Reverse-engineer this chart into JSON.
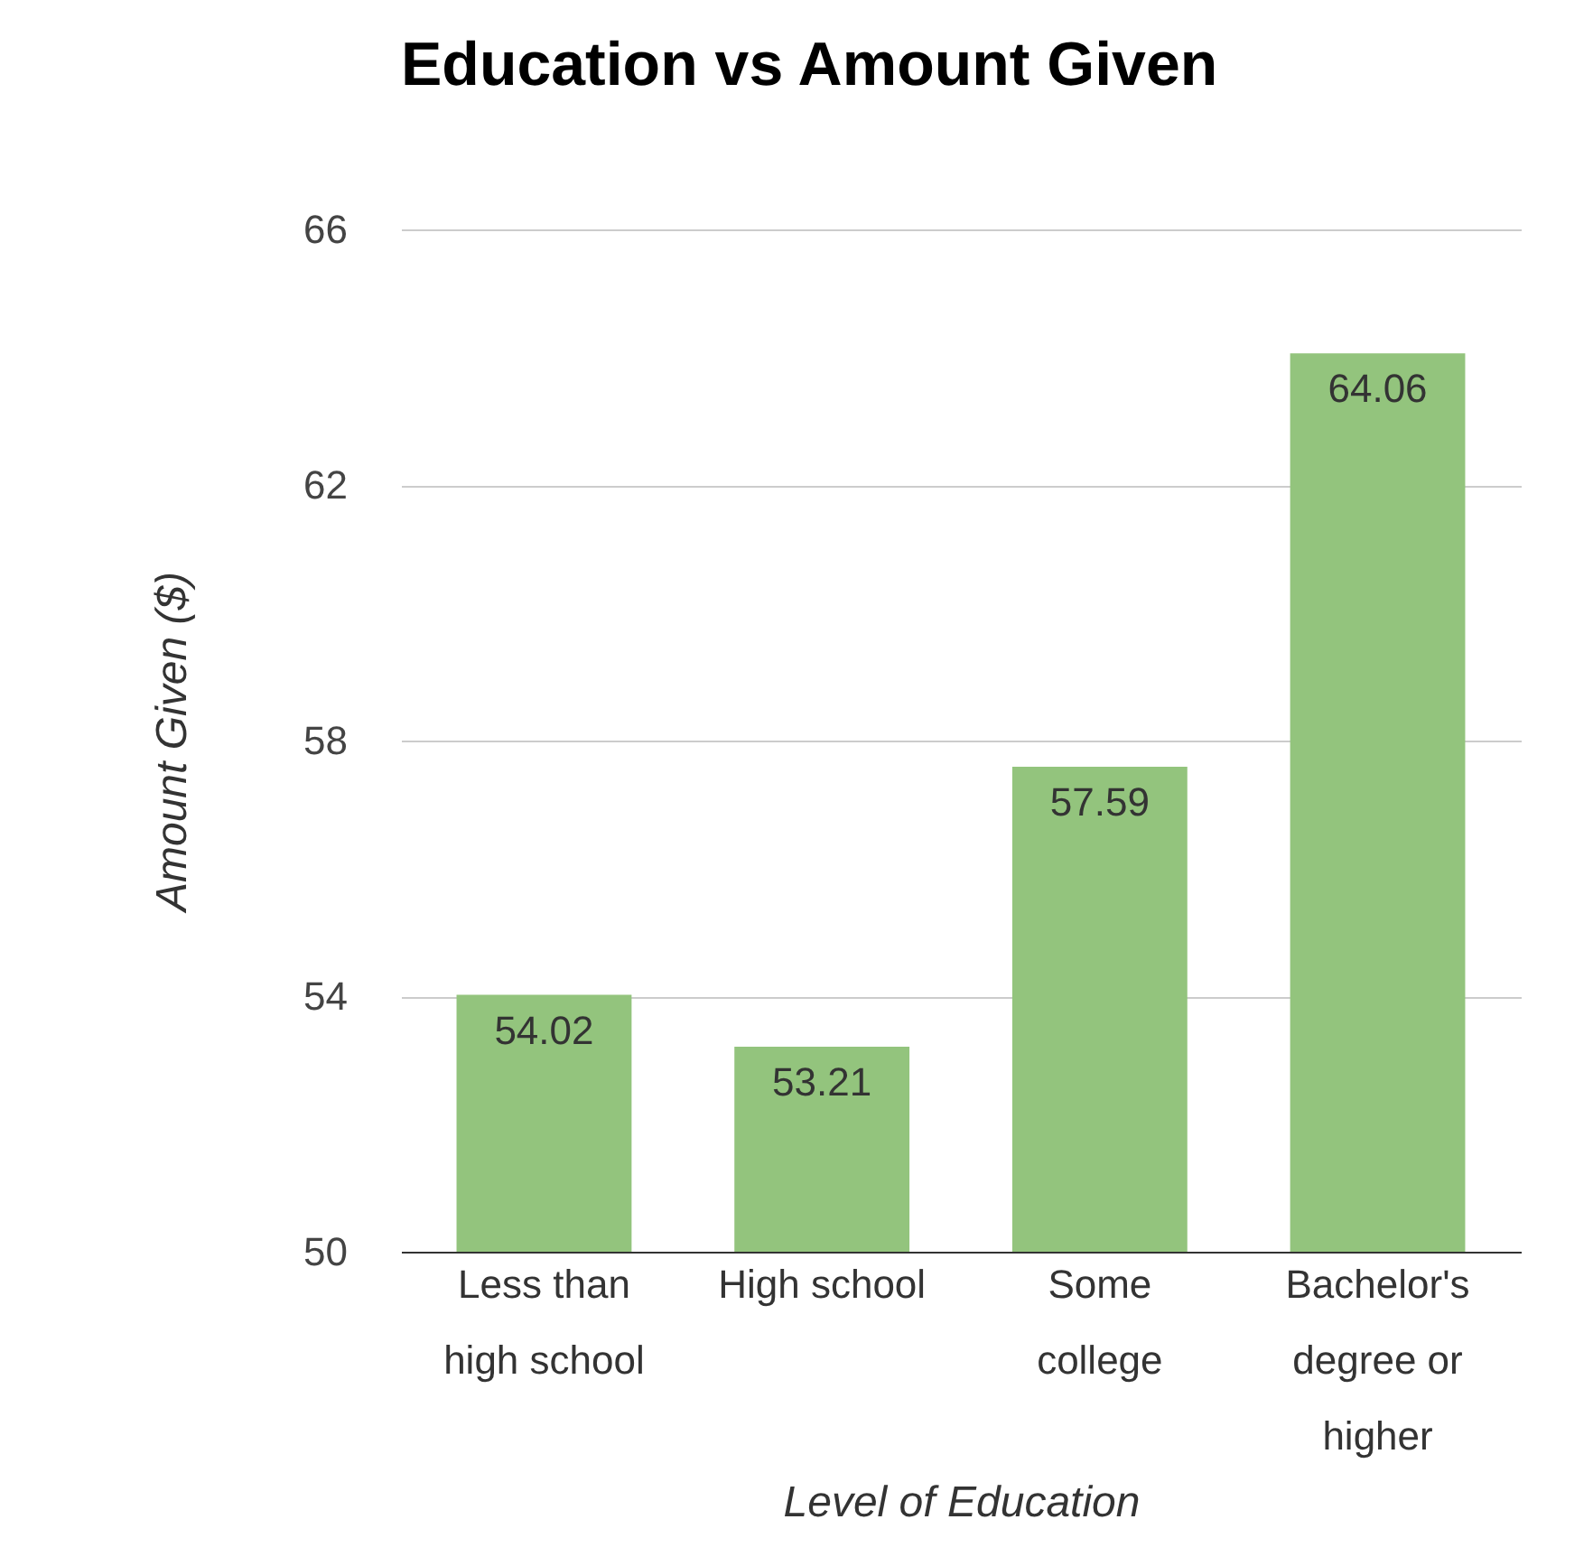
{
  "chart_data": {
    "type": "bar",
    "title": "Education vs Amount Given",
    "xlabel": "Level of Education",
    "ylabel": "Amount Given ($)",
    "categories": [
      "Less than high school",
      "High school",
      "Some college",
      "Bachelor's degree or higher"
    ],
    "values": [
      54.02,
      53.21,
      57.59,
      64.06
    ],
    "color": "#93c47d",
    "ylim": [
      50,
      66
    ],
    "yticks": [
      50,
      54,
      58,
      62,
      66
    ],
    "grid": "y",
    "data_labels": true
  }
}
